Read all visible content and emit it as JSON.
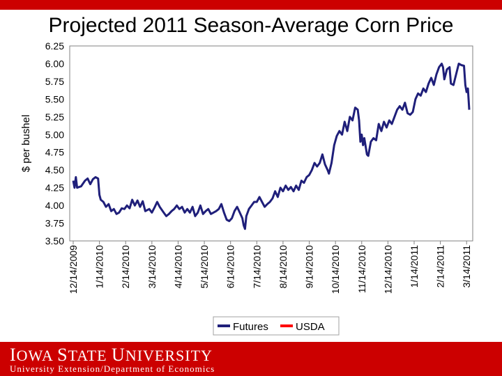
{
  "slide": {
    "title": "Projected 2011 Season-Average Corn Price",
    "footer_brand": "Iowa State University",
    "footer_dept": "University Extension/Department of Economics"
  },
  "colors": {
    "accent": "#cc0000",
    "futures": "#1f1f7a",
    "usda": "#ff0000"
  },
  "chart_data": {
    "type": "line",
    "title": "",
    "xlabel": "",
    "ylabel": "$ per bushel",
    "ylim": [
      3.5,
      6.25
    ],
    "yticks": [
      "6.25",
      "6.00",
      "5.75",
      "5.50",
      "5.25",
      "5.00",
      "4.75",
      "4.50",
      "4.25",
      "4.00",
      "3.75",
      "3.50"
    ],
    "xticks": [
      "12/14/2009",
      "1/14/2010",
      "2/14/2010",
      "3/14/2010",
      "4/14/2010",
      "5/14/2010",
      "6/14/2010",
      "7/14/2010",
      "8/14/2010",
      "9/14/2010",
      "10/14/2010",
      "11/14/2010",
      "12/14/2010",
      "1/14/2011",
      "2/14/2011",
      "3/14/2011"
    ],
    "x_unit": "months since 12/14/2009",
    "legend": [
      "Futures",
      "USDA"
    ],
    "legend_position": "bottom",
    "series": [
      {
        "name": "Futures",
        "color": "#1f1f7a",
        "points": [
          [
            0,
            4.35
          ],
          [
            0.05,
            4.25
          ],
          [
            0.1,
            4.4
          ],
          [
            0.15,
            4.25
          ],
          [
            0.3,
            4.27
          ],
          [
            0.45,
            4.35
          ],
          [
            0.55,
            4.38
          ],
          [
            0.65,
            4.3
          ],
          [
            0.75,
            4.37
          ],
          [
            0.85,
            4.4
          ],
          [
            0.95,
            4.38
          ],
          [
            1.0,
            4.15
          ],
          [
            1.05,
            4.08
          ],
          [
            1.15,
            4.05
          ],
          [
            1.25,
            3.98
          ],
          [
            1.35,
            4.02
          ],
          [
            1.45,
            3.92
          ],
          [
            1.55,
            3.95
          ],
          [
            1.65,
            3.88
          ],
          [
            1.75,
            3.9
          ],
          [
            1.85,
            3.96
          ],
          [
            1.95,
            3.95
          ],
          [
            2.05,
            4.0
          ],
          [
            2.15,
            3.96
          ],
          [
            2.25,
            4.08
          ],
          [
            2.35,
            4.0
          ],
          [
            2.45,
            4.07
          ],
          [
            2.55,
            3.98
          ],
          [
            2.65,
            4.06
          ],
          [
            2.75,
            3.92
          ],
          [
            2.9,
            3.95
          ],
          [
            3.0,
            3.9
          ],
          [
            3.1,
            3.97
          ],
          [
            3.2,
            4.05
          ],
          [
            3.3,
            3.98
          ],
          [
            3.45,
            3.9
          ],
          [
            3.55,
            3.85
          ],
          [
            3.65,
            3.88
          ],
          [
            3.75,
            3.92
          ],
          [
            3.85,
            3.95
          ],
          [
            3.95,
            4.0
          ],
          [
            4.05,
            3.95
          ],
          [
            4.15,
            3.98
          ],
          [
            4.25,
            3.9
          ],
          [
            4.35,
            3.95
          ],
          [
            4.45,
            3.9
          ],
          [
            4.55,
            3.98
          ],
          [
            4.65,
            3.85
          ],
          [
            4.75,
            3.9
          ],
          [
            4.85,
            4.0
          ],
          [
            4.95,
            3.88
          ],
          [
            5.05,
            3.92
          ],
          [
            5.15,
            3.95
          ],
          [
            5.25,
            3.88
          ],
          [
            5.35,
            3.9
          ],
          [
            5.45,
            3.92
          ],
          [
            5.55,
            3.95
          ],
          [
            5.65,
            4.02
          ],
          [
            5.75,
            3.9
          ],
          [
            5.85,
            3.8
          ],
          [
            5.95,
            3.78
          ],
          [
            6.05,
            3.82
          ],
          [
            6.15,
            3.92
          ],
          [
            6.25,
            3.98
          ],
          [
            6.35,
            3.9
          ],
          [
            6.45,
            3.82
          ],
          [
            6.5,
            3.72
          ],
          [
            6.55,
            3.67
          ],
          [
            6.6,
            3.85
          ],
          [
            6.7,
            3.95
          ],
          [
            6.8,
            4.0
          ],
          [
            6.9,
            4.05
          ],
          [
            7.0,
            4.05
          ],
          [
            7.1,
            4.12
          ],
          [
            7.2,
            4.05
          ],
          [
            7.3,
            3.98
          ],
          [
            7.4,
            4.02
          ],
          [
            7.5,
            4.05
          ],
          [
            7.6,
            4.1
          ],
          [
            7.7,
            4.2
          ],
          [
            7.8,
            4.12
          ],
          [
            7.9,
            4.25
          ],
          [
            8.0,
            4.2
          ],
          [
            8.1,
            4.28
          ],
          [
            8.2,
            4.22
          ],
          [
            8.3,
            4.26
          ],
          [
            8.4,
            4.2
          ],
          [
            8.5,
            4.28
          ],
          [
            8.6,
            4.22
          ],
          [
            8.7,
            4.35
          ],
          [
            8.8,
            4.32
          ],
          [
            8.9,
            4.4
          ],
          [
            9.0,
            4.43
          ],
          [
            9.1,
            4.5
          ],
          [
            9.2,
            4.6
          ],
          [
            9.3,
            4.55
          ],
          [
            9.4,
            4.6
          ],
          [
            9.5,
            4.72
          ],
          [
            9.6,
            4.58
          ],
          [
            9.7,
            4.5
          ],
          [
            9.75,
            4.45
          ],
          [
            9.85,
            4.6
          ],
          [
            9.95,
            4.85
          ],
          [
            10.05,
            4.98
          ],
          [
            10.15,
            5.05
          ],
          [
            10.25,
            5.0
          ],
          [
            10.35,
            5.18
          ],
          [
            10.45,
            5.05
          ],
          [
            10.55,
            5.25
          ],
          [
            10.65,
            5.2
          ],
          [
            10.75,
            5.38
          ],
          [
            10.85,
            5.35
          ],
          [
            10.9,
            5.2
          ],
          [
            10.95,
            4.9
          ],
          [
            11.0,
            5.0
          ],
          [
            11.05,
            4.85
          ],
          [
            11.1,
            4.95
          ],
          [
            11.2,
            4.72
          ],
          [
            11.25,
            4.7
          ],
          [
            11.35,
            4.9
          ],
          [
            11.45,
            4.95
          ],
          [
            11.55,
            4.92
          ],
          [
            11.65,
            5.15
          ],
          [
            11.75,
            5.05
          ],
          [
            11.85,
            5.18
          ],
          [
            11.95,
            5.1
          ],
          [
            12.05,
            5.2
          ],
          [
            12.15,
            5.15
          ],
          [
            12.25,
            5.25
          ],
          [
            12.35,
            5.35
          ],
          [
            12.45,
            5.4
          ],
          [
            12.55,
            5.35
          ],
          [
            12.65,
            5.45
          ],
          [
            12.75,
            5.3
          ],
          [
            12.85,
            5.28
          ],
          [
            12.95,
            5.32
          ],
          [
            13.05,
            5.5
          ],
          [
            13.15,
            5.58
          ],
          [
            13.25,
            5.55
          ],
          [
            13.35,
            5.65
          ],
          [
            13.45,
            5.6
          ],
          [
            13.55,
            5.72
          ],
          [
            13.65,
            5.8
          ],
          [
            13.75,
            5.7
          ],
          [
            13.85,
            5.85
          ],
          [
            13.95,
            5.95
          ],
          [
            14.05,
            6.0
          ],
          [
            14.1,
            5.95
          ],
          [
            14.15,
            5.78
          ],
          [
            14.25,
            5.92
          ],
          [
            14.35,
            5.95
          ],
          [
            14.4,
            5.72
          ],
          [
            14.5,
            5.7
          ],
          [
            14.6,
            5.85
          ],
          [
            14.7,
            6.0
          ],
          [
            14.8,
            5.98
          ],
          [
            14.9,
            5.97
          ],
          [
            14.95,
            5.7
          ],
          [
            15.0,
            5.6
          ],
          [
            15.05,
            5.65
          ],
          [
            15.1,
            5.35
          ]
        ]
      },
      {
        "name": "USDA",
        "color": "#ff0000",
        "points": []
      }
    ]
  }
}
